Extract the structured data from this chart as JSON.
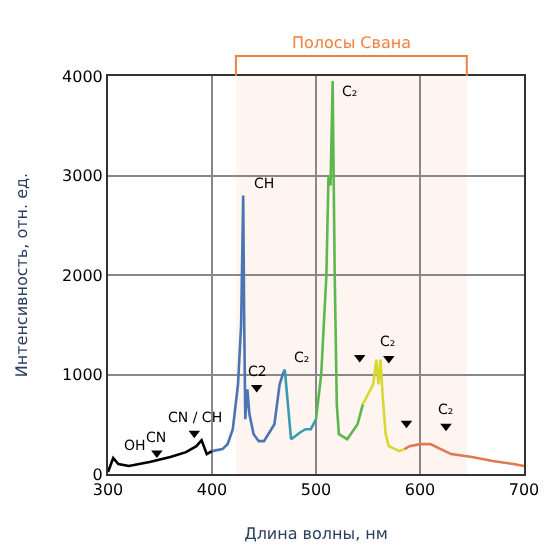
{
  "chart_data": {
    "type": "line",
    "xlabel": "Длина волны, нм",
    "ylabel": "Интенсивность, отн. ед.",
    "xlim": [
      300,
      700
    ],
    "xticks": [
      300,
      400,
      500,
      600,
      700
    ],
    "ylim": [
      0,
      4000
    ],
    "yticks": [
      0,
      1000,
      2000,
      3000,
      4000
    ],
    "grid": true,
    "series": [
      {
        "color": "#000000",
        "x": [
          300,
          305,
          310,
          320,
          340,
          360,
          375,
          385,
          390,
          395,
          400
        ],
        "values": [
          20,
          160,
          100,
          80,
          120,
          170,
          220,
          280,
          340,
          200,
          230
        ]
      },
      {
        "color": "#4a74b4",
        "x": [
          400,
          410,
          415,
          420,
          425,
          428,
          430,
          431,
          432,
          434,
          436,
          440,
          445,
          450,
          460,
          465,
          468,
          470
        ],
        "values": [
          230,
          250,
          300,
          450,
          900,
          1500,
          2800,
          1500,
          550,
          850,
          600,
          400,
          330,
          330,
          500,
          900,
          1000,
          1050
        ]
      },
      {
        "color": "#3a9ab0",
        "x": [
          470,
          473,
          476,
          480,
          485,
          490,
          495,
          500
        ],
        "values": [
          1050,
          700,
          350,
          380,
          420,
          450,
          450,
          550
        ]
      },
      {
        "color": "#5cb84c",
        "x": [
          500,
          505,
          510,
          512,
          514,
          516,
          518,
          520,
          522,
          530,
          540,
          545
        ],
        "values": [
          550,
          1000,
          2000,
          3000,
          2900,
          3950,
          2000,
          700,
          400,
          350,
          500,
          700
        ]
      },
      {
        "color": "#d8d830",
        "x": [
          545,
          550,
          555,
          558,
          560,
          562,
          564,
          567,
          570,
          580,
          585
        ],
        "values": [
          700,
          800,
          900,
          1150,
          900,
          1150,
          800,
          400,
          280,
          230,
          250
        ]
      },
      {
        "color": "#e07850",
        "x": [
          585,
          590,
          600,
          610,
          620,
          630,
          650,
          670,
          690,
          700
        ],
        "values": [
          250,
          280,
          300,
          300,
          250,
          200,
          170,
          130,
          100,
          80
        ]
      },
      {
        "type": "scatter",
        "marker": "triangle",
        "color": "#000000",
        "x": [
          347,
          383,
          443,
          542,
          570,
          587,
          625
        ],
        "values": [
          210,
          410,
          870,
          1170,
          1160,
          510,
          480
        ]
      }
    ],
    "annotations": [
      {
        "text": "OH",
        "x": 305,
        "y": 160
      },
      {
        "text": "CN",
        "x": 347,
        "y": 210
      },
      {
        "text": "CN / CH",
        "x": 383,
        "y": 410
      },
      {
        "text": "CH",
        "x": 430,
        "y": 2800
      },
      {
        "text": "C2",
        "x": 443,
        "y": 870
      },
      {
        "text": "C₂",
        "x": 470,
        "y": 1050
      },
      {
        "text": "C₂",
        "x": 516,
        "y": 3950
      },
      {
        "text": "C₂",
        "x": 570,
        "y": 1160
      },
      {
        "text": "C₂",
        "x": 625,
        "y": 480
      }
    ],
    "bands": [
      {
        "axis": "x",
        "from": 423,
        "to": 645,
        "label": "Полосы Свана",
        "color": "#f08040"
      }
    ]
  }
}
